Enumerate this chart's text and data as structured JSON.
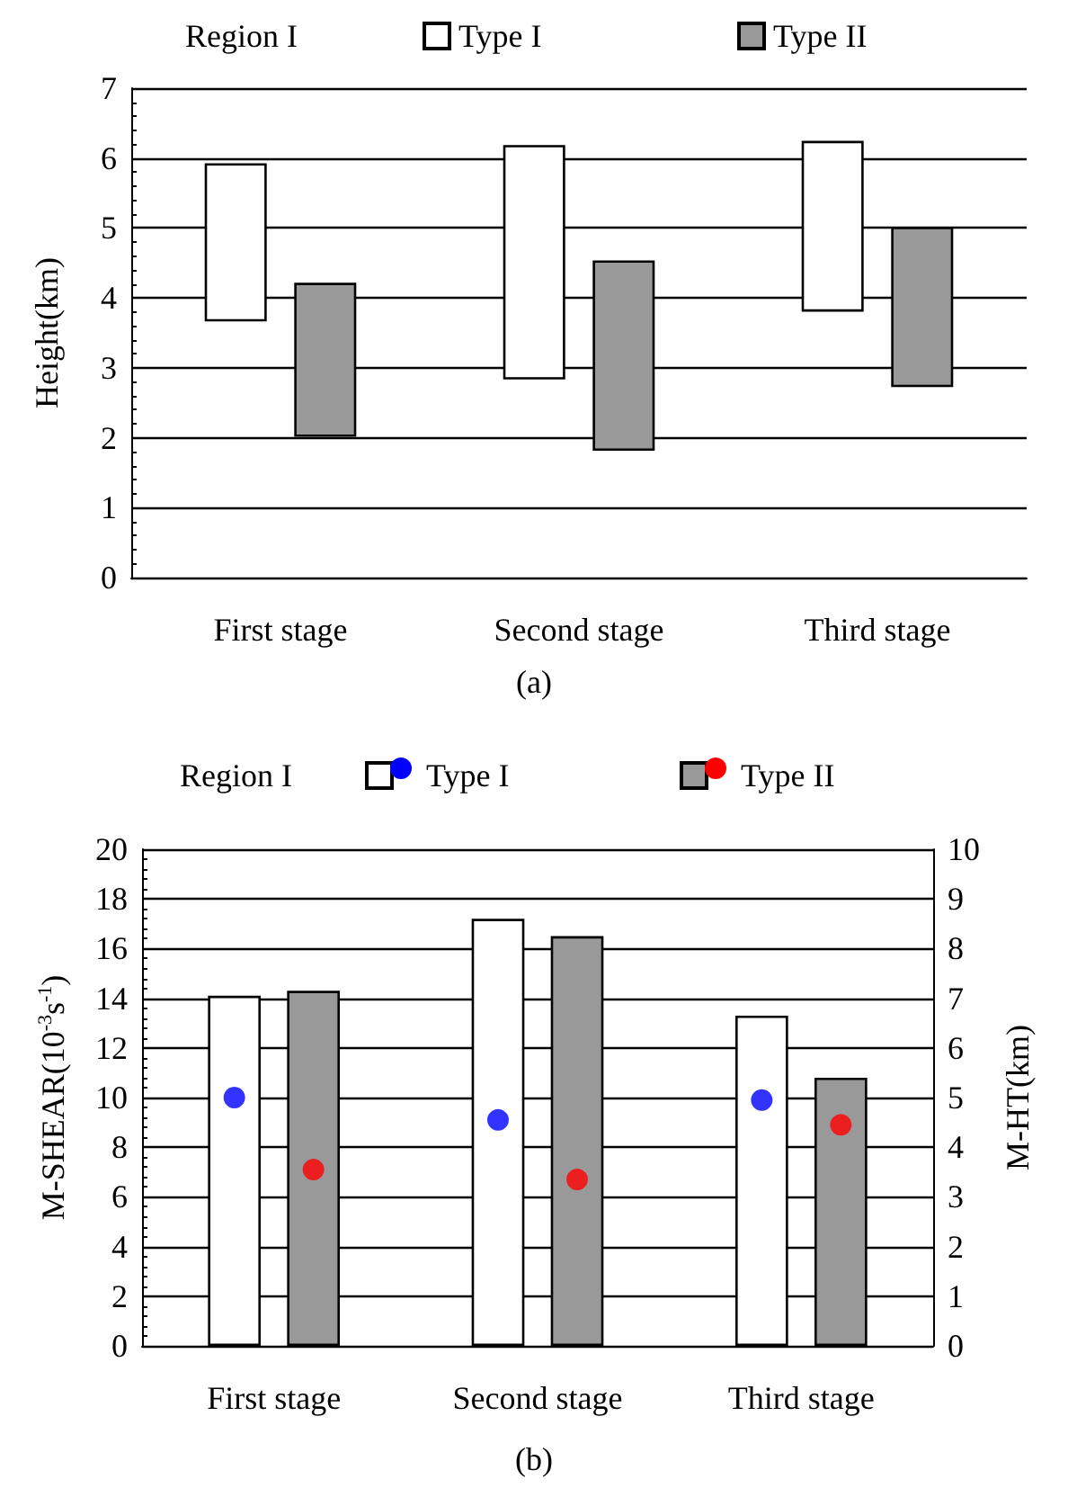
{
  "chart_data": [
    {
      "type": "bar",
      "title": "(a)",
      "legend_title": "Region I",
      "ylabel": "Height(km)",
      "categories": [
        "First stage",
        "Second stage",
        "Third stage"
      ],
      "series": [
        {
          "name": "Type I",
          "color": "#ffffff",
          "base": [
            3.68,
            2.85,
            3.82
          ],
          "values": [
            2.23,
            3.32,
            2.41
          ]
        },
        {
          "name": "Type II",
          "color": "#999999",
          "base": [
            2.03,
            1.83,
            2.74
          ],
          "values": [
            2.17,
            2.69,
            2.26
          ]
        }
      ],
      "ylim": [
        0,
        7
      ],
      "yticks": [
        0,
        1,
        2,
        3,
        4,
        5,
        6,
        7
      ],
      "grid": "y",
      "legend": "top"
    },
    {
      "type": "bar",
      "title": "(b)",
      "legend_title": "Region I",
      "ylabel": "M-SHEAR(10$^{-3}$s$^{-1}$)",
      "y2label": "M-HT(km)",
      "categories": [
        "First stage",
        "Second stage",
        "Third stage"
      ],
      "series": [
        {
          "name": "Type I",
          "color": "#ffffff",
          "values": [
            14.1,
            17.2,
            13.3
          ]
        },
        {
          "name": "Type II",
          "color": "#999999",
          "values": [
            14.3,
            16.5,
            10.8
          ]
        },
        {
          "type": "scatter",
          "axis": "y2",
          "marker": "circle",
          "color": "#0000ff",
          "x": [
            "First stage",
            "Second stage",
            "Third stage"
          ],
          "values": [
            5.0,
            4.55,
            4.95
          ]
        },
        {
          "type": "scatter",
          "axis": "y2",
          "marker": "circle",
          "color": "#ff0000",
          "x": [
            "First stage",
            "Second stage",
            "Third stage"
          ],
          "values": [
            3.55,
            3.35,
            4.45
          ]
        }
      ],
      "ylim": [
        0,
        20
      ],
      "yticks": [
        0,
        2,
        4,
        6,
        8,
        10,
        12,
        14,
        16,
        18,
        20
      ],
      "y2lim": [
        0,
        10
      ],
      "y2ticks": [
        0,
        1,
        2,
        3,
        4,
        5,
        6,
        7,
        8,
        9,
        10
      ],
      "grid": "y",
      "legend": "top"
    }
  ]
}
